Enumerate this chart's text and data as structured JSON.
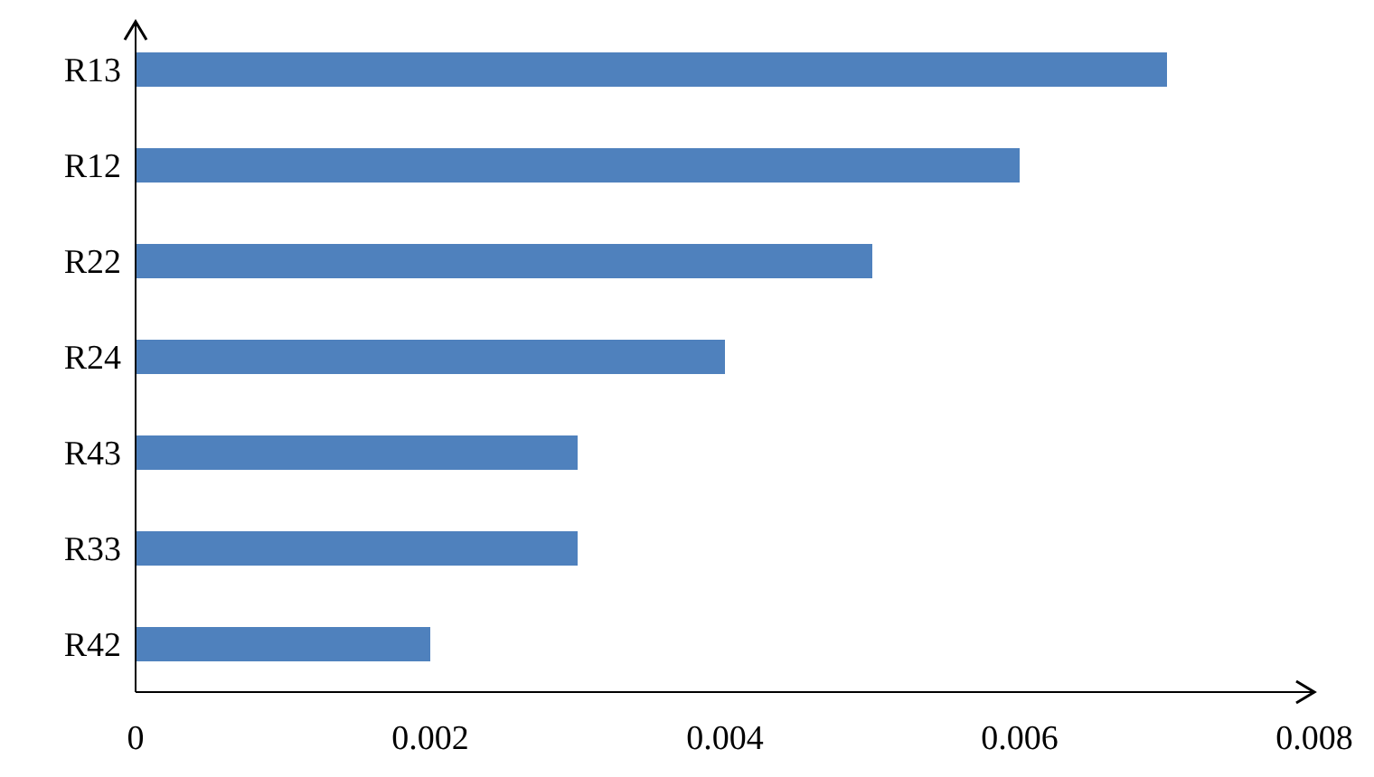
{
  "chart_data": {
    "type": "bar",
    "orientation": "horizontal",
    "categories": [
      "R13",
      "R12",
      "R22",
      "R24",
      "R43",
      "R33",
      "R42"
    ],
    "values": [
      0.007,
      0.006,
      0.005,
      0.004,
      0.003,
      0.003,
      0.002
    ],
    "color": "#4f81bd",
    "xlim": [
      0,
      0.008
    ],
    "xticks": [
      0,
      0.002,
      0.004,
      0.006,
      0.008
    ],
    "grid": false,
    "legend": false
  }
}
